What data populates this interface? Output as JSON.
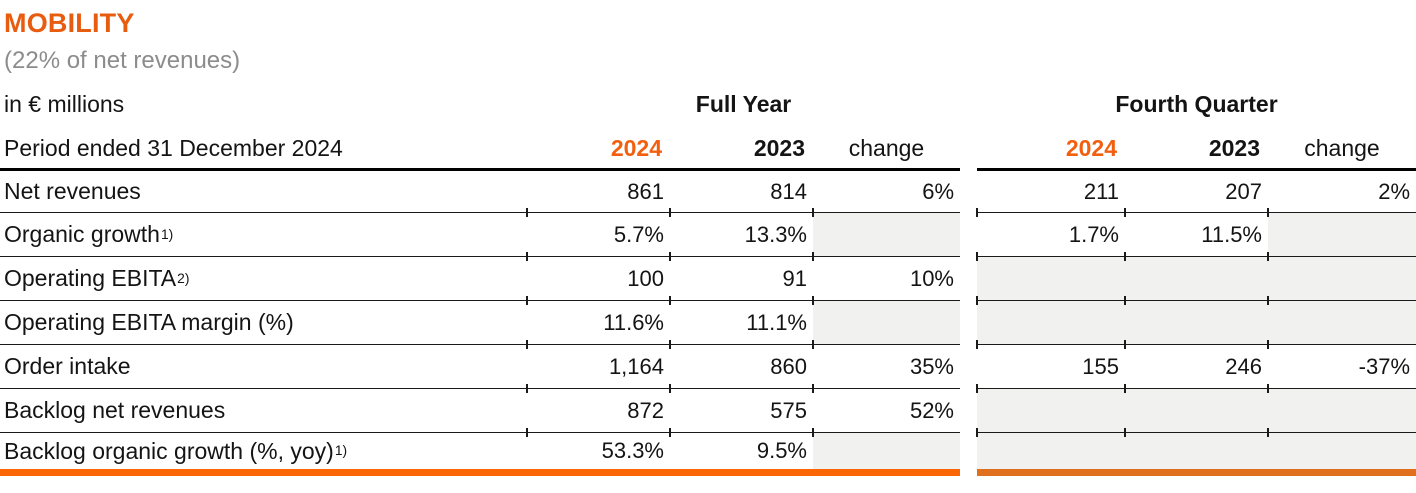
{
  "header": {
    "title": "MOBILITY",
    "subtitle": "(22% of net revenues)"
  },
  "table": {
    "unit_label": "in € millions",
    "period_label": "Period ended 31 December 2024",
    "groups": {
      "full_year": "Full Year",
      "fourth_quarter": "Fourth Quarter"
    },
    "col_headers": {
      "fy_2024": "2024",
      "fy_2023": "2023",
      "fy_change": "change",
      "q4_2024": "2024",
      "q4_2023": "2023",
      "q4_change": "change"
    },
    "rows": [
      {
        "label": "Net revenues",
        "sup": "",
        "fy": {
          "y2024": "861",
          "y2023": "814",
          "change": "6%"
        },
        "q4": {
          "y2024": "211",
          "y2023": "207",
          "change": "2%"
        }
      },
      {
        "label": "Organic growth",
        "sup": "1)",
        "fy": {
          "y2024": "5.7%",
          "y2023": "13.3%",
          "change": ""
        },
        "q4": {
          "y2024": "1.7%",
          "y2023": "11.5%",
          "change": ""
        }
      },
      {
        "label": "Operating EBITA",
        "sup": "2)",
        "fy": {
          "y2024": "100",
          "y2023": "91",
          "change": "10%"
        },
        "q4": {
          "y2024": "",
          "y2023": "",
          "change": ""
        }
      },
      {
        "label": "Operating EBITA margin (%)",
        "sup": "",
        "fy": {
          "y2024": "11.6%",
          "y2023": "11.1%",
          "change": ""
        },
        "q4": {
          "y2024": "",
          "y2023": "",
          "change": ""
        }
      },
      {
        "label": "Order intake",
        "sup": "",
        "fy": {
          "y2024": "1,164",
          "y2023": "860",
          "change": "35%"
        },
        "q4": {
          "y2024": "155",
          "y2023": "246",
          "change": "-37%"
        }
      },
      {
        "label": "Backlog net revenues",
        "sup": "",
        "fy": {
          "y2024": "872",
          "y2023": "575",
          "change": "52%"
        },
        "q4": {
          "y2024": "",
          "y2023": "",
          "change": ""
        }
      },
      {
        "label": "Backlog organic growth (%, yoy)",
        "sup": "1)",
        "fy": {
          "y2024": "53.3%",
          "y2023": "9.5%",
          "change": ""
        },
        "q4": {
          "y2024": "",
          "y2023": "",
          "change": ""
        }
      }
    ]
  },
  "colors": {
    "title_orange": "#E85C10",
    "year_orange": "#F25F0F",
    "bottom_rule_left": "#FA6505",
    "bottom_rule_right": "#E1701E",
    "na_cell_gray": "#F1F1EF"
  }
}
